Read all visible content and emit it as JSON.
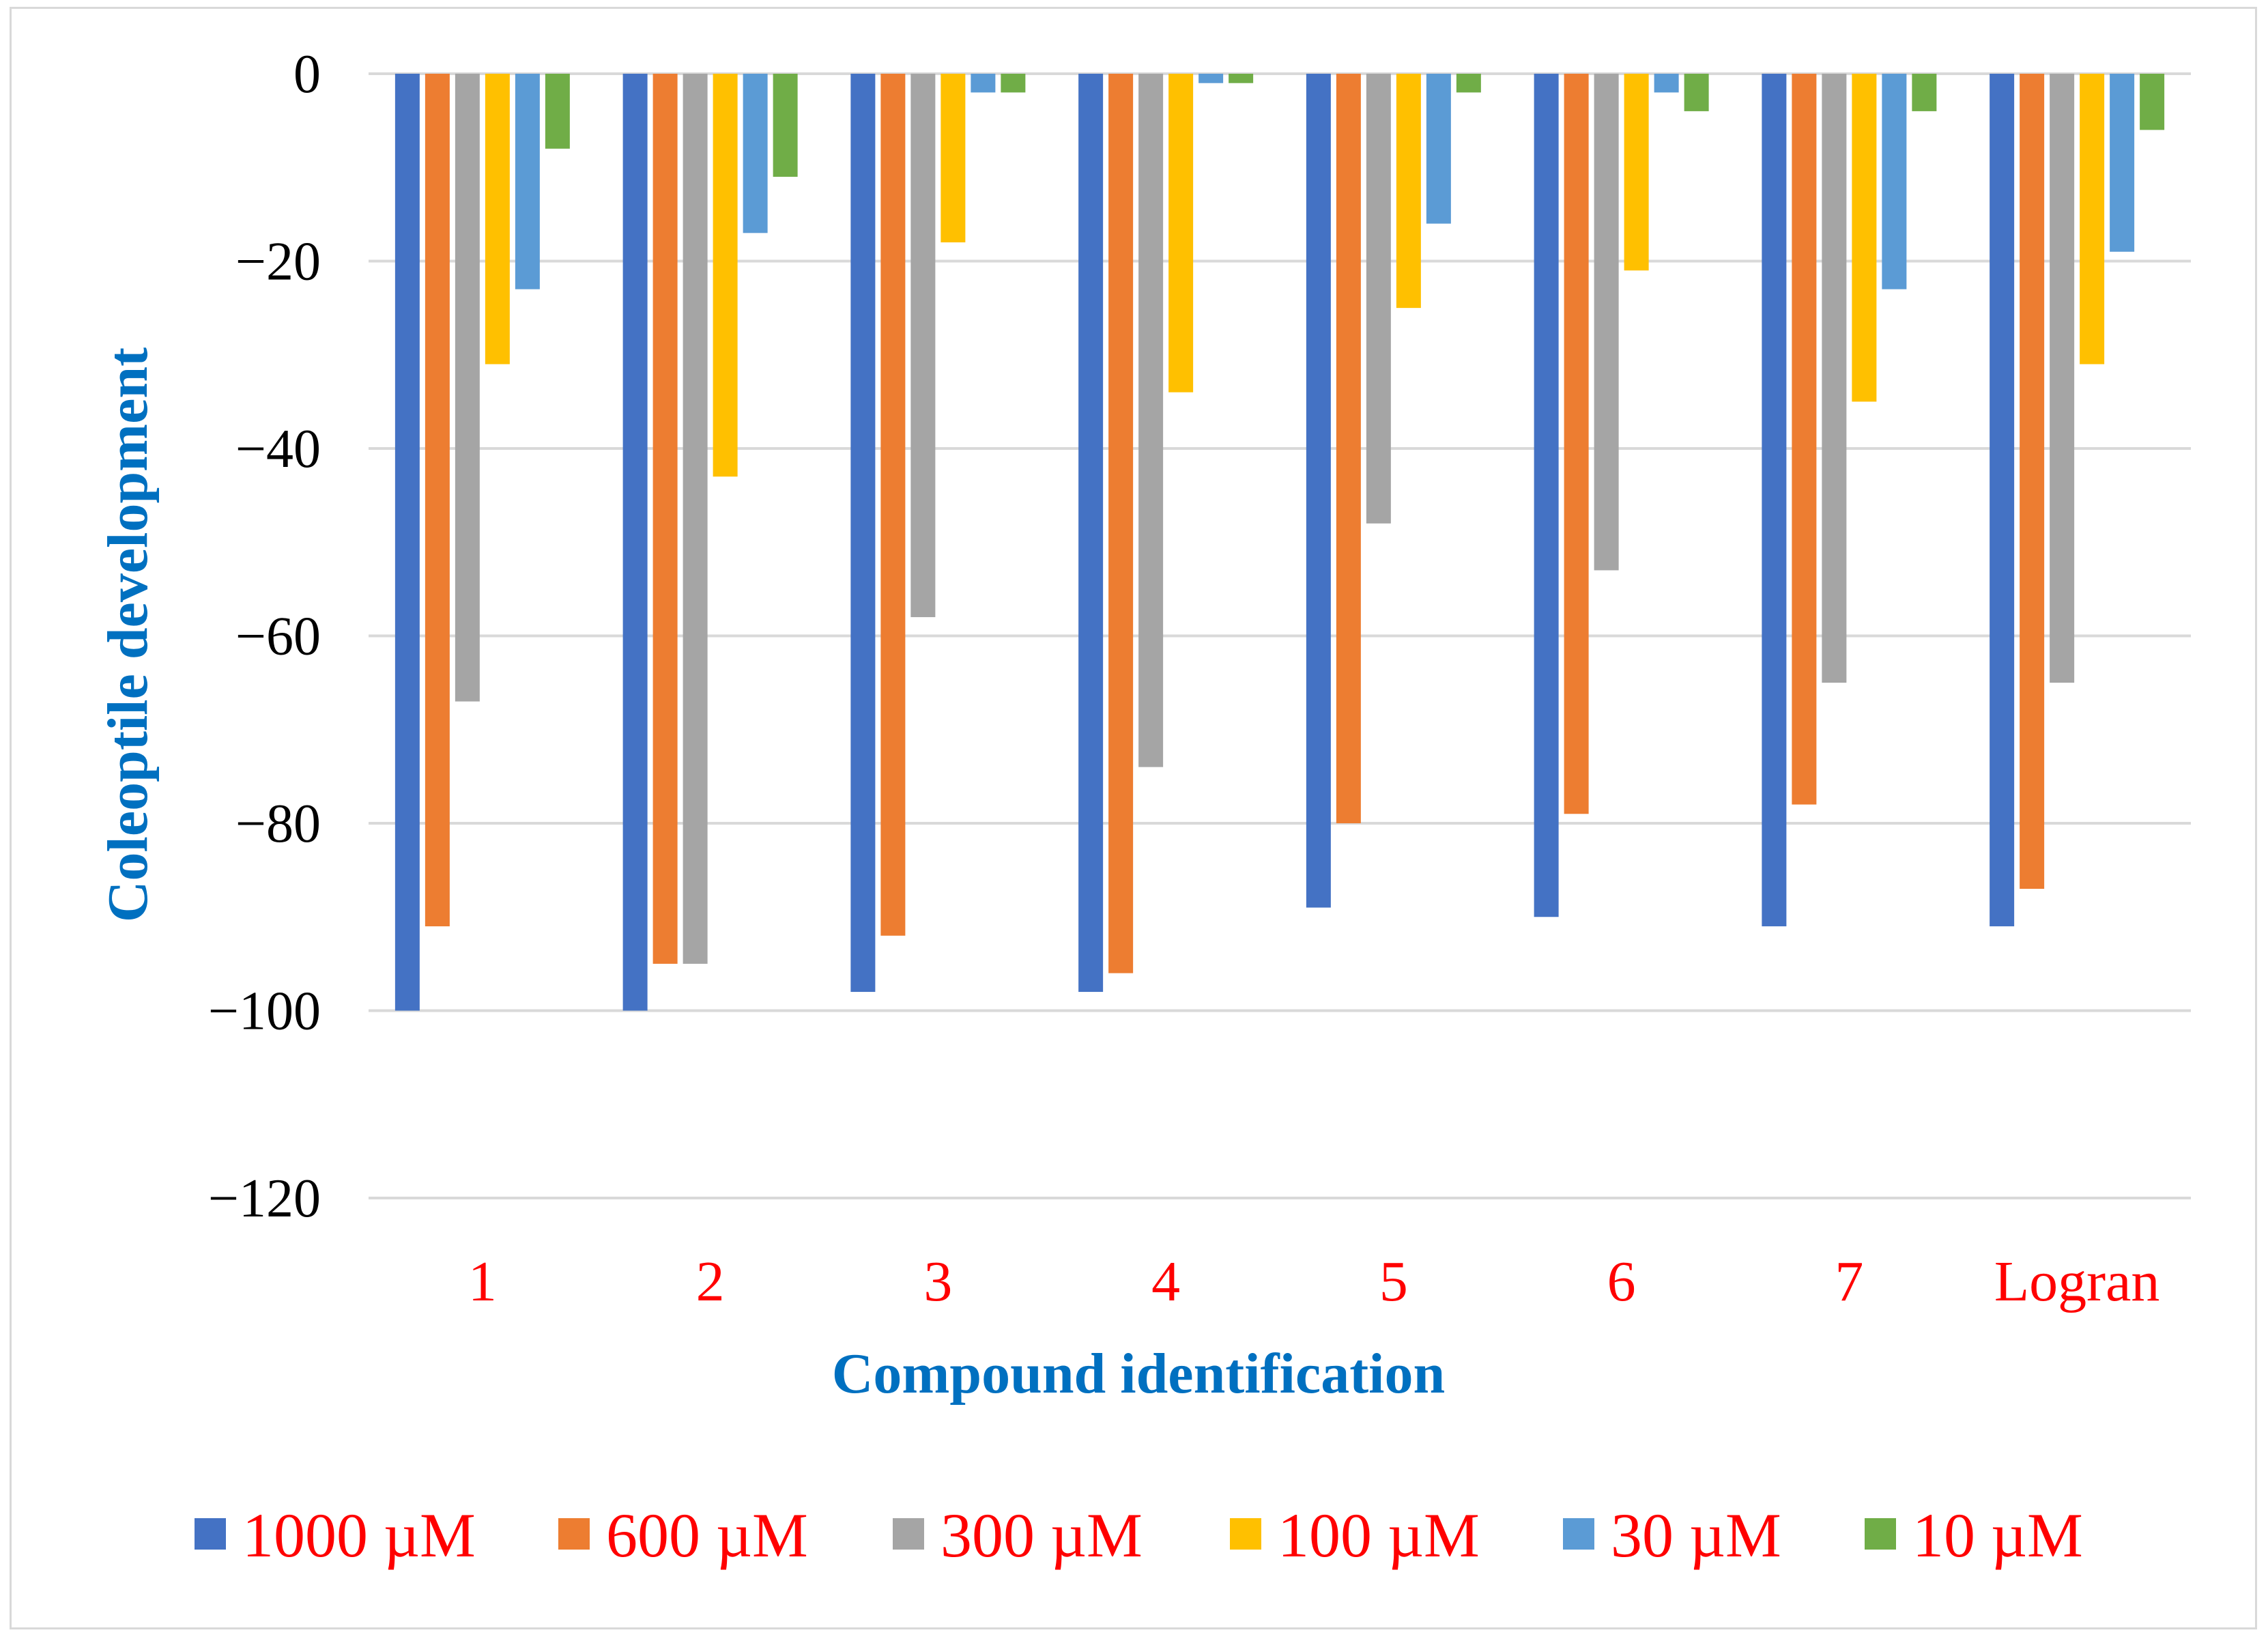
{
  "chart_data": {
    "type": "bar",
    "xlabel": "Compound identification",
    "ylabel": "Coleoptile development",
    "ylim": [
      -120,
      0
    ],
    "yticks": [
      0,
      -20,
      -40,
      -60,
      -80,
      -100,
      -120
    ],
    "grid": true,
    "legend_position": "bottom",
    "categories": [
      "1",
      "2",
      "3",
      "4",
      "5",
      "6",
      "7",
      "Logran"
    ],
    "series": [
      {
        "name": "1000 µM",
        "color": "#4472c4",
        "values": [
          -100,
          -100,
          -98,
          -98,
          -89,
          -90,
          -91,
          -91
        ]
      },
      {
        "name": "600 µM",
        "color": "#ed7d31",
        "values": [
          -91,
          -95,
          -92,
          -96,
          -80,
          -79,
          -78,
          -87
        ]
      },
      {
        "name": "300 µM",
        "color": "#a5a5a5",
        "values": [
          -67,
          -95,
          -58,
          -74,
          -48,
          -53,
          -65,
          -65
        ]
      },
      {
        "name": "100 µM",
        "color": "#ffc000",
        "values": [
          -31,
          -43,
          -18,
          -34,
          -25,
          -21,
          -35,
          -31
        ]
      },
      {
        "name": "30 µM",
        "color": "#5b9bd5",
        "values": [
          -23,
          -17,
          -2,
          -1,
          -16,
          -2,
          -23,
          -19
        ]
      },
      {
        "name": "10 µM",
        "color": "#70ad47",
        "values": [
          -8,
          -11,
          -2,
          -1,
          -2,
          -4,
          -4,
          -6
        ]
      }
    ]
  }
}
